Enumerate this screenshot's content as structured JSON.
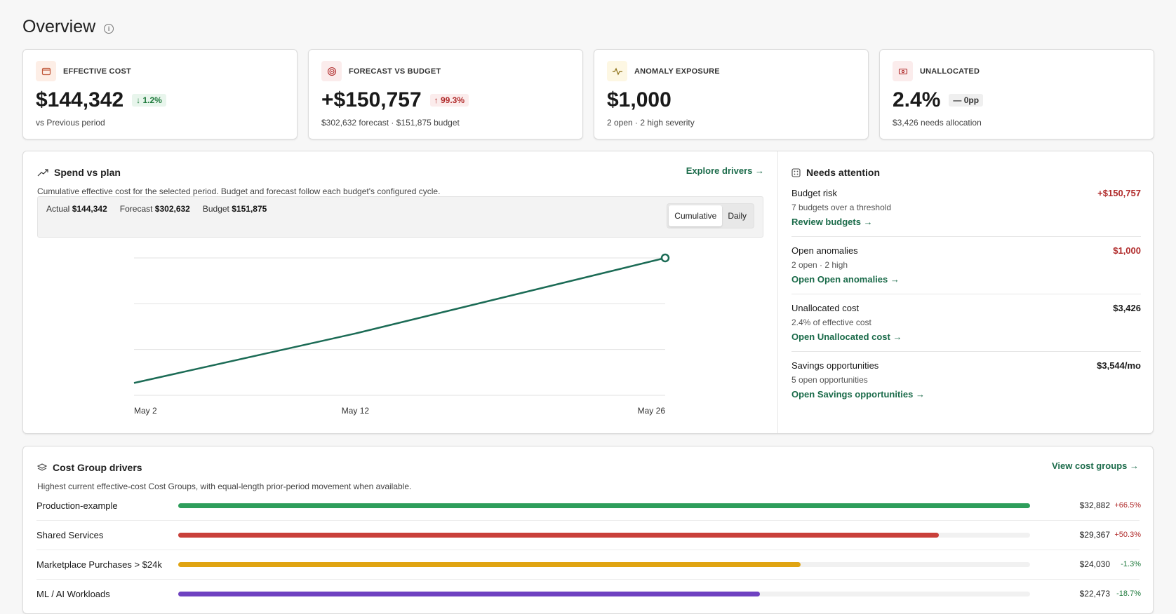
{
  "page": {
    "title": "Overview"
  },
  "kpis": [
    {
      "label": "EFFECTIVE COST",
      "value": "$144,342",
      "delta": "1.2%",
      "delta_dir": "down",
      "sub": "vs Previous period",
      "icon": "wallet-icon"
    },
    {
      "label": "FORECAST VS BUDGET",
      "value": "+$150,757",
      "delta": "99.3%",
      "delta_dir": "up",
      "sub": "$302,632 forecast · $151,875 budget",
      "icon": "target-icon"
    },
    {
      "label": "ANOMALY EXPOSURE",
      "value": "$1,000",
      "delta": "",
      "sub": "2 open · 2 high severity",
      "icon": "pulse-icon"
    },
    {
      "label": "UNALLOCATED",
      "value": "2.4%",
      "delta": "0pp",
      "delta_dir": "flat",
      "sub": "$3,426 needs allocation",
      "icon": "cash-icon"
    }
  ],
  "spend": {
    "title": "Spend vs plan",
    "link": "Explore drivers",
    "desc": "Cumulative effective cost for the selected period. Budget and forecast follow each budget's configured cycle.",
    "legend": {
      "actual_label": "Actual",
      "actual_value": "$144,342",
      "forecast_label": "Forecast",
      "forecast_value": "$302,632",
      "budget_label": "Budget",
      "budget_value": "$151,875"
    },
    "toggle": {
      "cumulative": "Cumulative",
      "daily": "Daily",
      "selected": "Cumulative"
    }
  },
  "chart_data": {
    "type": "line",
    "x": [
      "May 2",
      "May 12",
      "May 26"
    ],
    "x_ticks": [
      "May 2",
      "May 12",
      "May 26"
    ],
    "series": [
      {
        "values_fraction_of_top": [
          0.09,
          0.45,
          1.0
        ],
        "color": "#1b6b55"
      }
    ],
    "grid": true
  },
  "attention": {
    "title": "Needs attention",
    "items": [
      {
        "title": "Budget risk",
        "amount": "+$150,757",
        "amount_color": "#b02a2a",
        "sub": "7 budgets over a threshold",
        "link": "Review budgets"
      },
      {
        "title": "Open anomalies",
        "amount": "$1,000",
        "amount_color": "#b02a2a",
        "sub": "2 open · 2 high",
        "link": "Open Open anomalies"
      },
      {
        "title": "Unallocated cost",
        "amount": "$3,426",
        "amount_color": "#1a1a1a",
        "sub": "2.4% of effective cost",
        "link": "Open Unallocated cost"
      },
      {
        "title": "Savings opportunities",
        "amount": "$3,544/mo",
        "amount_color": "#1a1a1a",
        "sub": "5 open opportunities",
        "link": "Open Savings opportunities"
      }
    ]
  },
  "drivers": {
    "title": "Cost Group drivers",
    "link": "View cost groups",
    "desc": "Highest current effective-cost Cost Groups, with equal-length prior-period movement when available.",
    "rows": [
      {
        "name": "Production-example",
        "amount": "$32,882",
        "delta": "+66.5%",
        "fraction": 1.0,
        "color": "#2e9e5b",
        "delta_color": "#b02a2a"
      },
      {
        "name": "Shared Services",
        "amount": "$29,367",
        "delta": "+50.3%",
        "fraction": 0.893,
        "color": "#c9403a",
        "delta_color": "#b02a2a"
      },
      {
        "name": "Marketplace Purchases > $24k",
        "amount": "$24,030",
        "delta": "-1.3%",
        "fraction": 0.731,
        "color": "#e0a412",
        "delta_color": "#1e7a3c"
      },
      {
        "name": "ML / AI Workloads",
        "amount": "$22,473",
        "delta": "-18.7%",
        "fraction": 0.683,
        "color": "#6f42c1",
        "delta_color": "#1e7a3c"
      }
    ]
  }
}
